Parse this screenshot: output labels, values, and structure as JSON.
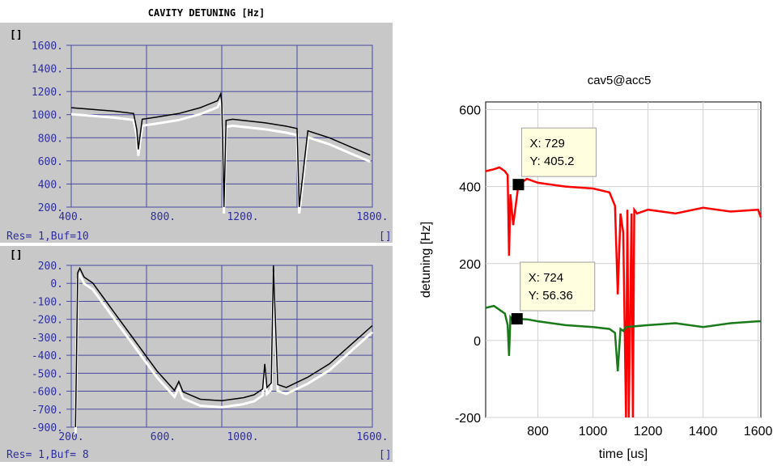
{
  "left": {
    "title": "CAVITY DETUNING [Hz]",
    "top_panel": {
      "unit_label": "[]",
      "yticks": [
        "1600.",
        "1400.",
        "1200.",
        "1000.",
        "800.",
        "600.",
        "400.",
        "200."
      ],
      "xticks": [
        "400.",
        "800.",
        "1200.",
        "1800."
      ],
      "status": "Res= 1,Buf=10",
      "xunit": "[]"
    },
    "bottom_panel": {
      "unit_label": "[]",
      "yticks": [
        "200.",
        "0.",
        "-100.",
        "-200.",
        "-300.",
        "-400.",
        "-500.",
        "-600.",
        "-700.",
        "-900."
      ],
      "xticks": [
        "200.",
        "600.",
        "1000.",
        "1600."
      ],
      "status": "Res= 1,Buf= 8",
      "xunit": "[]"
    }
  },
  "colors": {
    "panel_bg": "#c8c8c8",
    "plot_bg": "#c8c8c8",
    "grid": "#4848a0",
    "axis_text": "#2e2ea0",
    "trace_main": "#000000",
    "trace_ref": "#ffffff",
    "red": "#ff0000",
    "green": "#1a7a1a",
    "tooltip_bg": "#ffffe0"
  },
  "chart_data": [
    {
      "type": "line",
      "title": "CAVITY DETUNING [Hz]",
      "xlim": [
        400,
        1800
      ],
      "ylim": [
        200,
        1600
      ],
      "grid": true,
      "series": [
        {
          "x": [
            400,
            500,
            600,
            690,
            705,
            712,
            730,
            800,
            900,
            1000,
            1080,
            1095,
            1100,
            1110,
            1120,
            1150,
            1200,
            1300,
            1400,
            1450,
            1460,
            1500,
            1600,
            1700,
            1790
          ],
          "y": [
            1060,
            1045,
            1030,
            1010,
            870,
            700,
            960,
            980,
            1010,
            1060,
            1120,
            1180,
            1100,
            200,
            950,
            960,
            950,
            930,
            900,
            880,
            200,
            860,
            800,
            720,
            650
          ]
        }
      ]
    },
    {
      "type": "line",
      "xlim": [
        200,
        1600
      ],
      "ylim": [
        -900,
        200
      ],
      "grid": true,
      "series": [
        {
          "x": [
            220,
            230,
            240,
            260,
            300,
            400,
            500,
            600,
            680,
            700,
            720,
            800,
            900,
            1000,
            1050,
            1090,
            1100,
            1110,
            1130,
            1140,
            1160,
            1200,
            1300,
            1400,
            1500,
            1600
          ],
          "y": [
            -900,
            150,
            180,
            120,
            80,
            -120,
            -320,
            -520,
            -650,
            -590,
            -660,
            -710,
            -720,
            -700,
            -680,
            -640,
            -470,
            -630,
            -600,
            200,
            -610,
            -630,
            -560,
            -470,
            -340,
            -210
          ]
        }
      ]
    },
    {
      "type": "line",
      "title": "cav5@acc5",
      "xlabel": "time [us]",
      "ylabel": "detuning [Hz]",
      "xlim": [
        610,
        1610
      ],
      "ylim": [
        -200,
        620
      ],
      "xticks": [
        "800",
        "1000",
        "1200",
        "1400",
        "1600"
      ],
      "yticks": [
        "600",
        "400",
        "200",
        "0",
        "-200"
      ],
      "grid": true,
      "series": [
        {
          "color": "#ff0000",
          "x": [
            610,
            640,
            660,
            680,
            690,
            695,
            700,
            710,
            729,
            760,
            800,
            900,
            1000,
            1060,
            1080,
            1090,
            1100,
            1110,
            1120,
            1125,
            1130,
            1140,
            1145,
            1150,
            1160,
            1200,
            1300,
            1400,
            1500,
            1600,
            1610
          ],
          "y": [
            440,
            445,
            450,
            440,
            430,
            220,
            380,
            300,
            405.2,
            420,
            410,
            400,
            395,
            385,
            350,
            120,
            330,
            280,
            -200,
            340,
            -200,
            330,
            -200,
            340,
            330,
            340,
            330,
            345,
            335,
            340,
            320
          ]
        },
        {
          "color": "#1a7a1a",
          "x": [
            610,
            640,
            660,
            680,
            690,
            695,
            700,
            710,
            724,
            760,
            800,
            900,
            1000,
            1060,
            1080,
            1090,
            1100,
            1110,
            1120,
            1200,
            1300,
            1400,
            1500,
            1600,
            1610
          ],
          "y": [
            85,
            90,
            80,
            70,
            40,
            -40,
            60,
            50,
            56.36,
            55,
            50,
            40,
            35,
            30,
            20,
            -80,
            30,
            25,
            35,
            40,
            45,
            35,
            45,
            50,
            50
          ]
        }
      ],
      "annotations": [
        {
          "lines": [
            "X: 729",
            "Y: 405.2"
          ],
          "x": 729,
          "y": 405.2
        },
        {
          "lines": [
            "X: 724",
            "Y: 56.36"
          ],
          "x": 724,
          "y": 56.36
        }
      ]
    }
  ]
}
